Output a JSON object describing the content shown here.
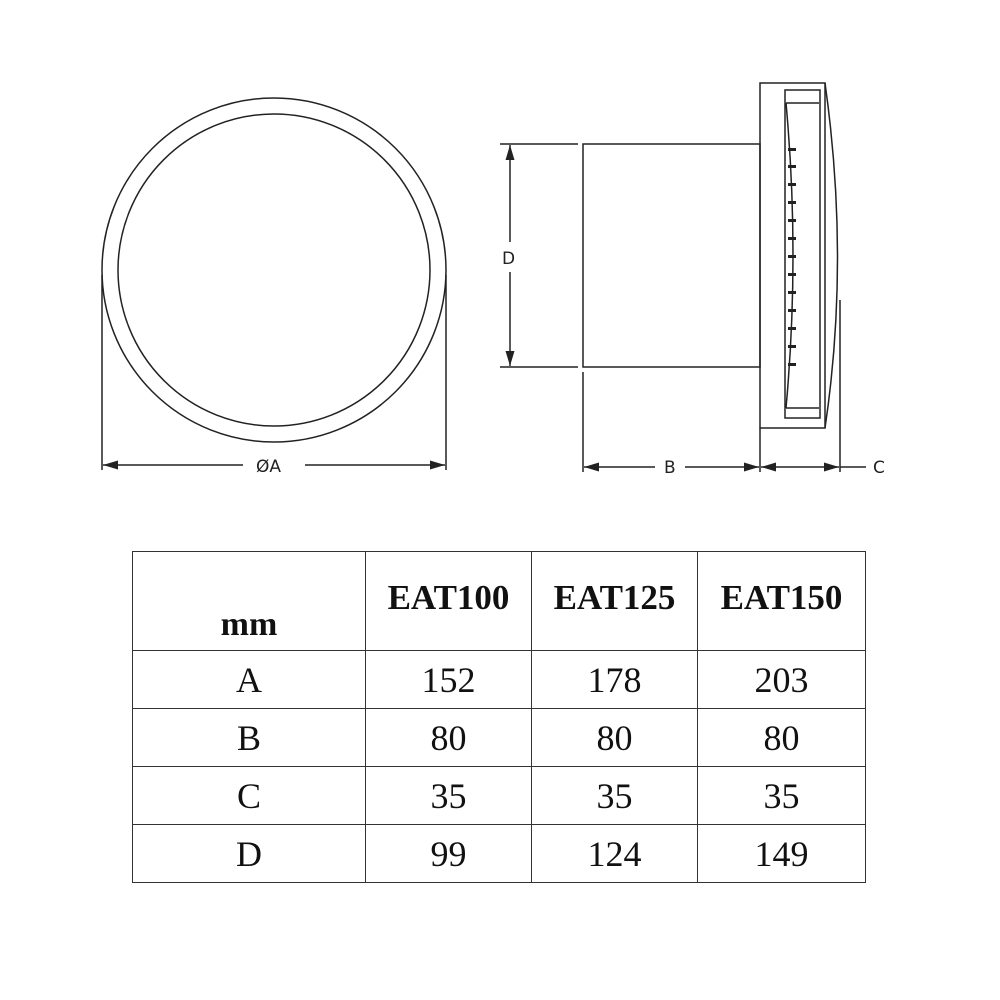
{
  "diagram": {
    "front_view": {
      "dimension_label": "ØA"
    },
    "side_view": {
      "dimension_labels": {
        "height": "D",
        "duct_length": "B",
        "cover_depth": "C"
      }
    }
  },
  "table": {
    "unit_header": "mm",
    "columns": [
      "EAT100",
      "EAT125",
      "EAT150"
    ],
    "rows": [
      {
        "label": "A",
        "values": [
          "152",
          "178",
          "203"
        ]
      },
      {
        "label": "B",
        "values": [
          "80",
          "80",
          "80"
        ]
      },
      {
        "label": "C",
        "values": [
          "35",
          "35",
          "35"
        ]
      },
      {
        "label": "D",
        "values": [
          "99",
          "124",
          "149"
        ]
      }
    ]
  }
}
